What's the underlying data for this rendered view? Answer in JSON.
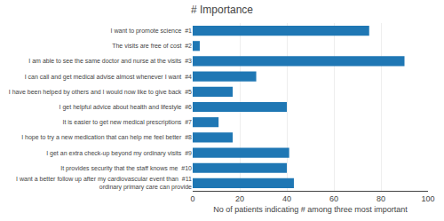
{
  "chart_data": {
    "type": "bar",
    "orientation": "horizontal",
    "title": "# Importance",
    "x_label": "No of patients indicating # among three most important",
    "categories": [
      "I want to promote science  #1",
      "The visits are free of cost  #2",
      "I am able to see the same doctor and nurse at the visits  #3",
      "I can call and get medical advise almost whenever I want  #4",
      "I have been helped by others and I would now like to give back  #5",
      "I get helpful advice about health and lifestyle  #6",
      "It is easier to get new medical prescriptions  #7",
      "I hope to try a new medication that can help me feel better  #8",
      "I get an extra check-up beyond my ordinary visits  #9",
      "It provides security that the staff knows me  #10",
      "I want a better follow up after my cardiovascular event than  #11\nordinary primary care can provide"
    ],
    "values": [
      75,
      3,
      90,
      27,
      17,
      40,
      11,
      17,
      41,
      40,
      43
    ],
    "xlim": [
      0,
      100
    ],
    "xticks": [
      0,
      20,
      40,
      60,
      80,
      100
    ],
    "grid": true
  }
}
